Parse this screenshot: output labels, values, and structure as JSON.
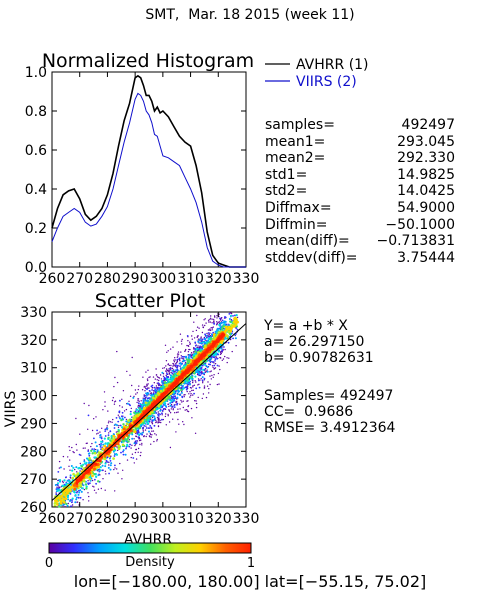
{
  "title": "SMT,  Mar. 18 2015 (week 11)",
  "chart_data": [
    {
      "type": "line",
      "title": "Normalized Histogram",
      "xlim": [
        260,
        330
      ],
      "ylim": [
        0.0,
        1.0
      ],
      "xticks": [
        "260",
        "270",
        "280",
        "290",
        "300",
        "310",
        "320",
        "330"
      ],
      "yticks": [
        "0.0",
        "0.2",
        "0.4",
        "0.6",
        "0.8",
        "1.0"
      ],
      "legend": "right",
      "series": [
        {
          "name": "AVHRR (1)",
          "color": "#000000",
          "x": [
            260,
            262,
            264,
            266,
            268,
            270,
            272,
            274,
            276,
            278,
            280,
            282,
            284,
            286,
            288,
            290,
            291,
            292,
            293,
            294,
            295,
            296,
            297,
            298,
            299,
            300,
            302,
            304,
            306,
            308,
            310,
            312,
            314,
            316,
            318,
            320,
            322,
            324,
            326,
            328,
            330
          ],
          "values": [
            0.2,
            0.3,
            0.37,
            0.39,
            0.4,
            0.35,
            0.27,
            0.24,
            0.26,
            0.3,
            0.37,
            0.48,
            0.62,
            0.75,
            0.84,
            0.97,
            0.98,
            0.97,
            0.93,
            0.88,
            0.88,
            0.85,
            0.8,
            0.82,
            0.79,
            0.8,
            0.77,
            0.72,
            0.67,
            0.64,
            0.62,
            0.52,
            0.38,
            0.18,
            0.06,
            0.02,
            0.01,
            0.0,
            0.0,
            0.0,
            0.0
          ]
        },
        {
          "name": "VIIRS (2)",
          "color": "#1010cc",
          "x": [
            260,
            262,
            264,
            266,
            268,
            270,
            272,
            274,
            276,
            278,
            280,
            282,
            284,
            286,
            288,
            290,
            291,
            292,
            293,
            294,
            295,
            296,
            297,
            298,
            299,
            300,
            302,
            304,
            306,
            308,
            310,
            312,
            314,
            316,
            318,
            320,
            322,
            324,
            326,
            328,
            330
          ],
          "values": [
            0.13,
            0.2,
            0.26,
            0.28,
            0.3,
            0.28,
            0.23,
            0.21,
            0.22,
            0.26,
            0.31,
            0.4,
            0.52,
            0.64,
            0.74,
            0.86,
            0.89,
            0.88,
            0.85,
            0.8,
            0.78,
            0.74,
            0.68,
            0.67,
            0.62,
            0.57,
            0.56,
            0.54,
            0.52,
            0.46,
            0.4,
            0.33,
            0.23,
            0.1,
            0.03,
            0.01,
            0.0,
            0.0,
            0.0,
            0.0,
            0.0
          ]
        }
      ]
    },
    {
      "type": "scatter",
      "title": "Scatter Plot",
      "xlabel": "AVHRR",
      "ylabel": "VIIRS",
      "xlim": [
        260,
        330
      ],
      "ylim": [
        260,
        330
      ],
      "xticks": [
        "260",
        "270",
        "280",
        "290",
        "300",
        "310",
        "320",
        "330"
      ],
      "yticks": [
        "260",
        "270",
        "280",
        "290",
        "300",
        "310",
        "320",
        "330"
      ],
      "fit": {
        "a": 26.29715,
        "b": 0.90782631
      },
      "density_colors": [
        "#5a00a0",
        "#3030ff",
        "#00a0ff",
        "#00e0e0",
        "#40e060",
        "#c0f020",
        "#ffd000",
        "#ff6000",
        "#ff2000"
      ]
    }
  ],
  "stats": [
    {
      "key": "samples=",
      "value": "492497"
    },
    {
      "key": "mean1=",
      "value": "293.045"
    },
    {
      "key": "mean2=",
      "value": "292.330"
    },
    {
      "key": "std1=",
      "value": "14.9825"
    },
    {
      "key": "std2=",
      "value": "14.0425"
    },
    {
      "key": "Diffmax=",
      "value": "54.9000"
    },
    {
      "key": "Diffmin=",
      "value": "−50.1000"
    },
    {
      "key": "mean(diff)=",
      "value": "−0.713831"
    },
    {
      "key": "stddev(diff)=",
      "value": "3.75444"
    }
  ],
  "regression": {
    "formula": "Y= a +b * X",
    "a": "a= 26.297150",
    "b": "b= 0.90782631",
    "samples": "Samples= 492497",
    "cc": "CC=  0.9686",
    "rmse": "RMSE= 3.4912364"
  },
  "colorbar": {
    "label": "Density",
    "min": "0",
    "max": "1",
    "colors": [
      "#5a00a0",
      "#3030ff",
      "#00a0ff",
      "#00e0e0",
      "#40e060",
      "#c0f020",
      "#ffd000",
      "#ff6000",
      "#ff2000"
    ]
  },
  "footer": "lon=[−180.00, 180.00] lat=[−55.15, 75.02]"
}
